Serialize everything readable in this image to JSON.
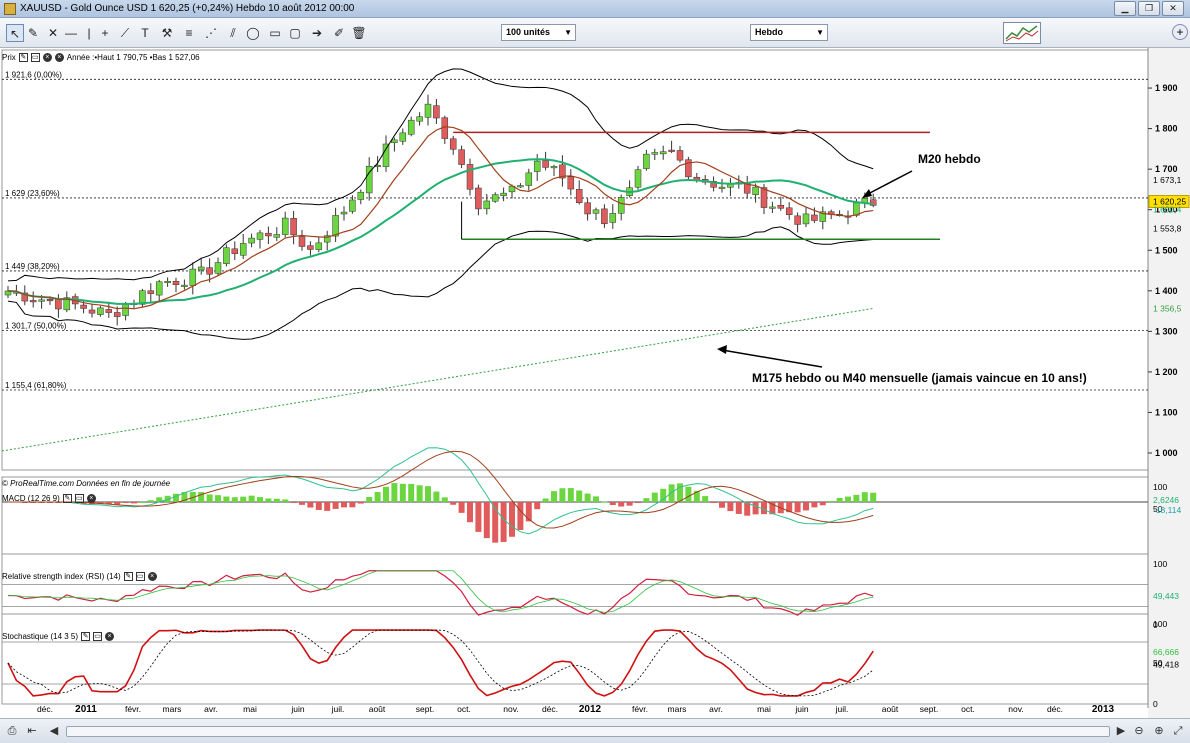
{
  "window": {
    "title": "XAUUSD - Gold Ounce USD    1 620,25 (+0,24%)    Hebdo  10 août 2012 00:00"
  },
  "toolbar": {
    "units_dropdown": "100 unités",
    "period_dropdown": "Hebdo",
    "tools": [
      "pointer-icon",
      "wrench-icon",
      "cross-icon",
      "hline-icon",
      "vline-icon",
      "plus-icon",
      "ray-icon",
      "text-icon",
      "hammer-icon",
      "fibo-icon",
      "fibo-fan-icon",
      "channel-icon",
      "rectangle-icon",
      "ellipse-icon",
      "arrow-icon",
      "paint-icon",
      "trash-icon"
    ]
  },
  "price_panel": {
    "name": "Prix",
    "info": "Année :•Haut 1 790,75 •Bas 1 527,06",
    "footer": "© ProRealTime.com  Données en fin de journée"
  },
  "macd_panel": {
    "name": "MACD (12 26 9)"
  },
  "rsi_panel": {
    "name": "Relative strength index (RSI) (14)"
  },
  "stoch_panel": {
    "name": "Stochastique (14 3 5)"
  },
  "chart_data": {
    "type": "candlestick",
    "instrument": "XAUUSD - Gold Ounce USD",
    "last_price": "1 620,25",
    "change": "+0,24%",
    "period": "Hebdo",
    "y_axis_ticks": [
      "1 900",
      "1 800",
      "1 700",
      "1 600",
      "1 500",
      "1 400",
      "1 300",
      "1 200",
      "1 100",
      "1 000"
    ],
    "x_axis_labels": [
      "déc.",
      "2011",
      "févr.",
      "mars",
      "avr.",
      "mai",
      "juin",
      "juil.",
      "août",
      "sept.",
      "oct.",
      "nov.",
      "déc.",
      "2012",
      "févr.",
      "mars",
      "avr.",
      "mai",
      "juin",
      "juil.",
      "août",
      "sept.",
      "oct.",
      "nov.",
      "déc.",
      "2013"
    ],
    "fibonacci_levels": [
      {
        "label": "1 921,6 (0,00%)",
        "value": 1921.6
      },
      {
        "label": "1 629 (23,60%)",
        "value": 1629
      },
      {
        "label": "1 449 (38,20%)",
        "value": 1449
      },
      {
        "label": "1 301,7 (50,00%)",
        "value": 1301.7
      },
      {
        "label": "1 155,4 (61,80%)",
        "value": 1155.4
      }
    ],
    "price_axis_markers": [
      {
        "label": "1 673,1",
        "value": 1673.1
      },
      {
        "label": "1 620,25",
        "value": 1620.25
      },
      {
        "label": "1 600,4",
        "value": 1600.4
      },
      {
        "label": "1 553,8",
        "value": 1553.8
      },
      {
        "label": "1 356,5",
        "value": 1356.5
      }
    ],
    "resistance": 1790.75,
    "support": 1527.06,
    "annotations": [
      "M20 hebdo",
      "M175 hebdo ou M40 mensuelle (jamais vaincue en 10 ans!)"
    ],
    "macd_axis": [
      "100",
      "50"
    ],
    "macd_values": [
      "2,6246",
      "-18,114"
    ],
    "rsi_axis": [
      "100",
      "0"
    ],
    "rsi_value": "49,443",
    "stoch_axis": [
      "100",
      "50",
      "0"
    ],
    "stoch_values": [
      "66,666",
      "49,418"
    ],
    "colors": {
      "up_candle": "#6cd640",
      "down_candle": "#e05c5c",
      "ma20": "#20b070",
      "ma_red": "#a0401c",
      "bollinger": "#000000",
      "resistance": "#b02020",
      "support": "#208020",
      "m175": "#30a040"
    }
  }
}
